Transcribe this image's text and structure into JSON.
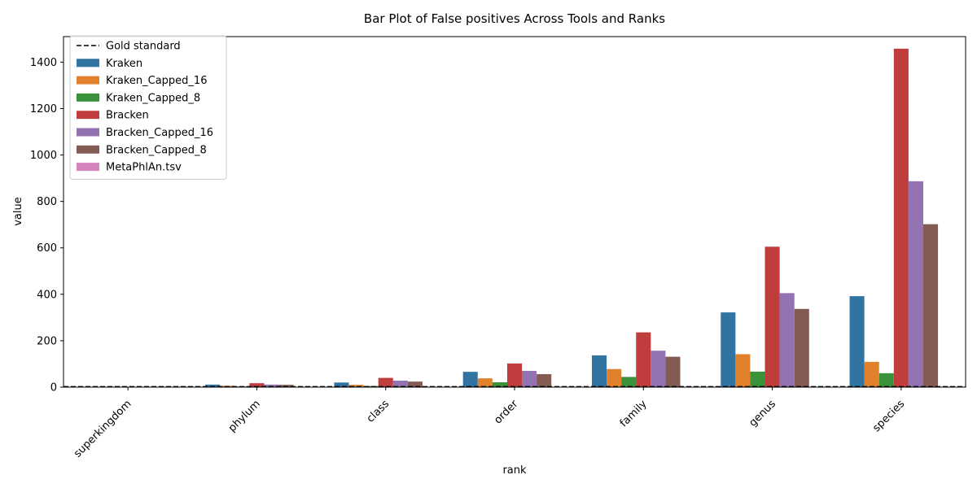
{
  "chart_data": {
    "type": "bar",
    "title": "Bar Plot of False positives Across Tools and Ranks",
    "xlabel": "rank",
    "ylabel": "value",
    "ylim": [
      0,
      1510
    ],
    "yticks": [
      0,
      200,
      400,
      600,
      800,
      1000,
      1200,
      1400
    ],
    "grid": false,
    "legend_position": "top-left",
    "categories": [
      "superkingdom",
      "phylum",
      "class",
      "order",
      "family",
      "genus",
      "species"
    ],
    "reference_line": {
      "name": "Gold standard",
      "value": 2,
      "style": "dashed",
      "color": "#000000"
    },
    "series": [
      {
        "name": "Kraken",
        "color": "#3274a1",
        "values": [
          0,
          11,
          20,
          66,
          137,
          322,
          392
        ]
      },
      {
        "name": "Kraken_Capped_16",
        "color": "#e1812c",
        "values": [
          0,
          6,
          10,
          38,
          78,
          142,
          109
        ]
      },
      {
        "name": "Kraken_Capped_8",
        "color": "#3a923a",
        "values": [
          0,
          3,
          5,
          21,
          44,
          67,
          60
        ]
      },
      {
        "name": "Bracken",
        "color": "#c03d3e",
        "values": [
          0,
          17,
          40,
          102,
          236,
          605,
          1458
        ]
      },
      {
        "name": "Bracken_Capped_16",
        "color": "#9372b2",
        "values": [
          0,
          11,
          28,
          70,
          157,
          405,
          887
        ]
      },
      {
        "name": "Bracken_Capped_8",
        "color": "#845b53",
        "values": [
          0,
          10,
          24,
          56,
          131,
          337,
          702
        ]
      },
      {
        "name": "MetaPhlAn.tsv",
        "color": "#d684bd",
        "values": [
          0,
          0,
          0,
          0,
          0,
          0,
          0
        ]
      }
    ]
  }
}
